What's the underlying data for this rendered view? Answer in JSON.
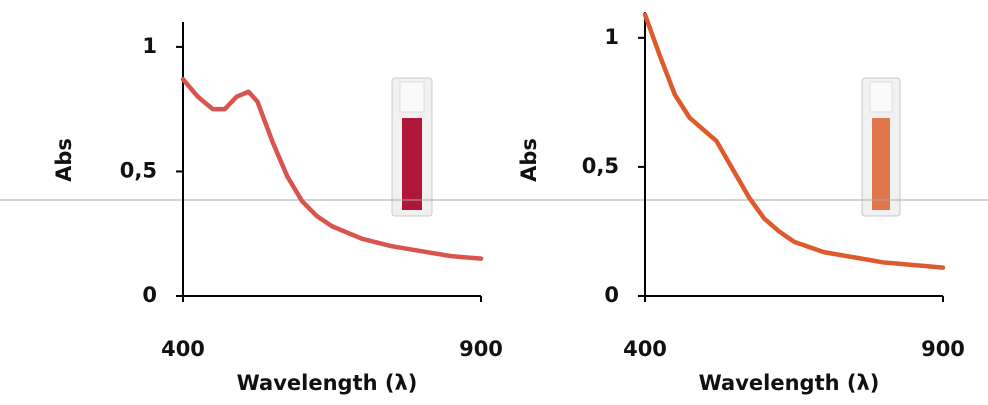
{
  "chart_data": [
    {
      "type": "line",
      "xlabel": "Wavelength (λ)",
      "ylabel": "Abs",
      "x": [
        400,
        425,
        450,
        470,
        490,
        510,
        525,
        550,
        575,
        600,
        625,
        650,
        700,
        750,
        800,
        850,
        900
      ],
      "series": [
        {
          "color": "#d9544f",
          "values": [
            0.87,
            0.8,
            0.75,
            0.75,
            0.8,
            0.82,
            0.78,
            0.62,
            0.48,
            0.38,
            0.32,
            0.28,
            0.23,
            0.2,
            0.18,
            0.16,
            0.15
          ]
        }
      ],
      "xlim": [
        400,
        900
      ],
      "ylim": [
        0,
        1.1
      ],
      "xticks": [
        400,
        900
      ],
      "yticks": [
        0,
        {
          "value": 0.5,
          "label": "0,5"
        },
        1
      ]
    },
    {
      "type": "line",
      "xlabel": "Wavelength (λ)",
      "ylabel": "Abs",
      "x": [
        400,
        425,
        450,
        475,
        500,
        520,
        550,
        575,
        600,
        625,
        650,
        700,
        750,
        800,
        850,
        900
      ],
      "series": [
        {
          "color": "#de5a2c",
          "values": [
            1.09,
            0.93,
            0.78,
            0.69,
            0.64,
            0.6,
            0.48,
            0.38,
            0.3,
            0.25,
            0.21,
            0.17,
            0.15,
            0.13,
            0.12,
            0.11
          ]
        }
      ],
      "xlim": [
        400,
        900
      ],
      "ylim": [
        0,
        1.1
      ],
      "xticks": [
        400,
        900
      ],
      "yticks": [
        0,
        {
          "value": 0.5,
          "label": "0,5"
        },
        1
      ]
    }
  ]
}
